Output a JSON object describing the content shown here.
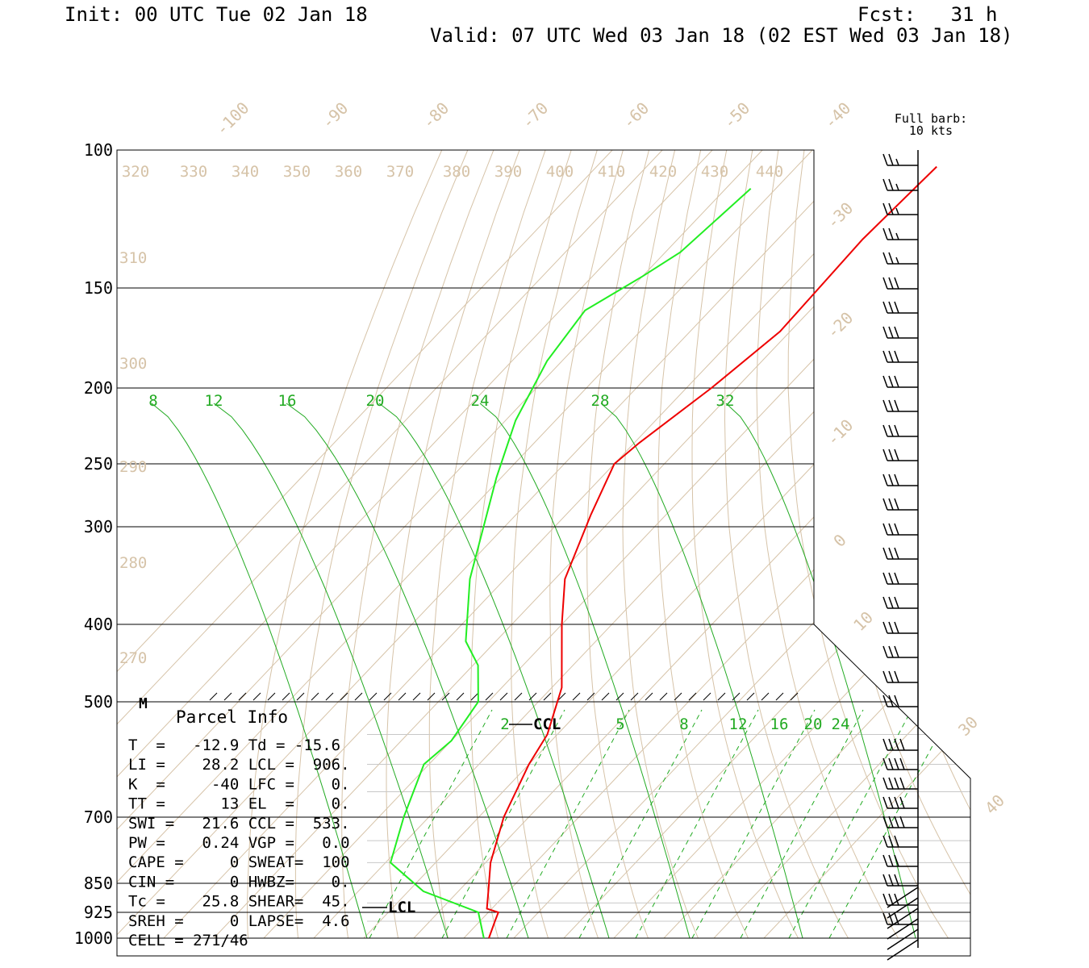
{
  "header": {
    "init": "Init: 00 UTC Tue 02 Jan 18",
    "fcst": "Fcst:   31 h",
    "valid": "Valid: 07 UTC Wed 03 Jan 18 (02 EST Wed 03 Jan 18)"
  },
  "barb_legend": {
    "line1": "Full barb:",
    "line2": "10 kts"
  },
  "colors": {
    "temperature": "#ee0000",
    "dewpoint": "#22ee22",
    "isotherm": "#d6c3a8",
    "mixing_ratio": "#22aa22",
    "frame": "#000000"
  },
  "chart_data": {
    "type": "line",
    "title": "",
    "pressure_levels": [
      100,
      150,
      200,
      250,
      300,
      400,
      500,
      700,
      850,
      925,
      1000
    ],
    "pressure_labels": [
      "100",
      "150",
      "200",
      "250",
      "300",
      "400",
      "500",
      "700",
      "850",
      "925",
      "1000"
    ],
    "isotherm_labels": [
      "-100",
      "-90",
      "-80",
      "-70",
      "-60",
      "-50",
      "-40",
      "-30",
      "-20",
      "-10",
      "0",
      "10",
      "30",
      "40"
    ],
    "theta_labels_top": [
      "320",
      "330",
      "340",
      "350",
      "360",
      "370",
      "380",
      "390",
      "400",
      "410",
      "420",
      "430",
      "440"
    ],
    "theta_labels_left": [
      "310",
      "300",
      "290",
      "280",
      "270"
    ],
    "mixing_labels_upper": [
      "8",
      "12",
      "16",
      "20",
      "24",
      "28",
      "32"
    ],
    "mixing_labels_lower": [
      "2",
      "5",
      "8",
      "12",
      "16",
      "20",
      "24"
    ],
    "series": [
      {
        "name": "Temperature",
        "color": "#ee0000",
        "pressure": [
          105,
          130,
          170,
          200,
          235,
          250,
          290,
          350,
          400,
          480,
          550,
          600,
          700,
          800,
          870,
          915,
          925,
          950,
          1000
        ],
        "temp_c": [
          -52,
          -53,
          -52,
          -55,
          -59,
          -60,
          -55,
          -48,
          -40,
          -28,
          -22,
          -20,
          -15,
          -9,
          -4,
          -1,
          2,
          3,
          5
        ]
      },
      {
        "name": "Dewpoint",
        "color": "#22ee22",
        "pressure": [
          112,
          135,
          145,
          160,
          185,
          220,
          260,
          350,
          420,
          450,
          500,
          560,
          600,
          700,
          800,
          870,
          925,
          1000
        ],
        "dewp_c": [
          -85,
          -87,
          -90,
          -95,
          -93,
          -88,
          -81,
          -67,
          -56,
          -49,
          -42,
          -40,
          -41,
          -35,
          -29,
          -17,
          -2,
          4
        ]
      }
    ],
    "markers": {
      "m": "M",
      "ccl": "CCL",
      "lcl": "LCL"
    }
  },
  "parcel_info": {
    "title": "Parcel Info",
    "rows": [
      "T  =   -12.9 Td = -15.6",
      "LI =    28.2 LCL =  906.",
      "K  =     -40 LFC =    0.",
      "TT =      13 EL  =    0.",
      "SWI =   21.6 CCL =  533.",
      "PW =    0.24 VGP =   0.0",
      "CAPE =     0 SWEAT=  100",
      "CIN =      0 HWBZ=    0.",
      "Tc =    25.8 SHEAR=  45.",
      "SREH =     0 LAPSE=  4.6",
      "CELL = 271/46"
    ]
  }
}
